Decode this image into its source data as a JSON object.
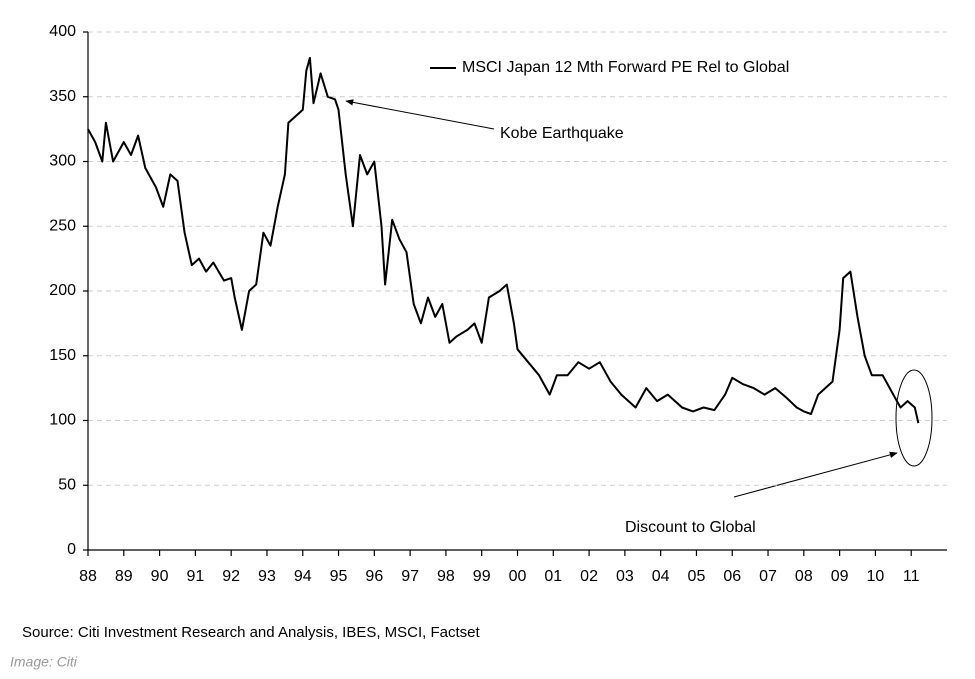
{
  "chart_data": {
    "type": "line",
    "legend_label": "MSCI Japan 12 Mth Forward PE Rel to Global",
    "annotations": [
      "Kobe Earthquake",
      "Discount to Global"
    ],
    "source": "Source: Citi Investment Research and Analysis, IBES, MSCI, Factset",
    "credit": "Image: Citi",
    "grid": true,
    "xlim": [
      1988,
      2012
    ],
    "ylim": [
      0,
      400
    ],
    "yticks": [
      0,
      50,
      100,
      150,
      200,
      250,
      300,
      350,
      400
    ],
    "xticks": [
      {
        "value": 1988,
        "label": "88"
      },
      {
        "value": 1989,
        "label": "89"
      },
      {
        "value": 1990,
        "label": "90"
      },
      {
        "value": 1991,
        "label": "91"
      },
      {
        "value": 1992,
        "label": "92"
      },
      {
        "value": 1993,
        "label": "93"
      },
      {
        "value": 1994,
        "label": "94"
      },
      {
        "value": 1995,
        "label": "95"
      },
      {
        "value": 1996,
        "label": "96"
      },
      {
        "value": 1997,
        "label": "97"
      },
      {
        "value": 1998,
        "label": "98"
      },
      {
        "value": 1999,
        "label": "99"
      },
      {
        "value": 2000,
        "label": "00"
      },
      {
        "value": 2001,
        "label": "01"
      },
      {
        "value": 2002,
        "label": "02"
      },
      {
        "value": 2003,
        "label": "03"
      },
      {
        "value": 2004,
        "label": "04"
      },
      {
        "value": 2005,
        "label": "05"
      },
      {
        "value": 2006,
        "label": "06"
      },
      {
        "value": 2007,
        "label": "07"
      },
      {
        "value": 2008,
        "label": "08"
      },
      {
        "value": 2009,
        "label": "09"
      },
      {
        "value": 2010,
        "label": "10"
      },
      {
        "value": 2011,
        "label": "11"
      }
    ],
    "x": [
      1988.0,
      1988.2,
      1988.4,
      1988.5,
      1988.7,
      1989.0,
      1989.2,
      1989.4,
      1989.6,
      1989.9,
      1990.1,
      1990.3,
      1990.5,
      1990.7,
      1990.9,
      1991.1,
      1991.3,
      1991.5,
      1991.8,
      1992.0,
      1992.1,
      1992.3,
      1992.5,
      1992.7,
      1992.9,
      1993.1,
      1993.3,
      1993.5,
      1993.6,
      1993.8,
      1994.0,
      1994.1,
      1994.2,
      1994.3,
      1994.5,
      1994.7,
      1994.9,
      1995.0,
      1995.2,
      1995.4,
      1995.6,
      1995.8,
      1996.0,
      1996.2,
      1996.3,
      1996.5,
      1996.7,
      1996.9,
      1997.1,
      1997.3,
      1997.5,
      1997.7,
      1997.9,
      1998.1,
      1998.3,
      1998.6,
      1998.8,
      1999.0,
      1999.2,
      1999.5,
      1999.7,
      1999.9,
      2000.0,
      2000.3,
      2000.6,
      2000.9,
      2001.1,
      2001.4,
      2001.7,
      2002.0,
      2002.3,
      2002.6,
      2002.9,
      2003.1,
      2003.3,
      2003.6,
      2003.9,
      2004.2,
      2004.6,
      2004.9,
      2005.2,
      2005.5,
      2005.8,
      2006.0,
      2006.3,
      2006.6,
      2006.9,
      2007.2,
      2007.5,
      2007.8,
      2008.0,
      2008.2,
      2008.4,
      2008.6,
      2008.8,
      2009.0,
      2009.1,
      2009.3,
      2009.5,
      2009.7,
      2009.9,
      2010.2,
      2010.5,
      2010.7,
      2010.9,
      2011.1,
      2011.2
    ],
    "series": [
      {
        "name": "MSCI Japan 12 Mth Forward PE Rel to Global",
        "color": "#000000",
        "values": [
          325,
          315,
          300,
          330,
          300,
          315,
          305,
          320,
          295,
          280,
          265,
          290,
          285,
          245,
          220,
          225,
          215,
          222,
          208,
          210,
          195,
          170,
          200,
          205,
          245,
          235,
          265,
          290,
          330,
          335,
          340,
          370,
          380,
          345,
          368,
          350,
          348,
          340,
          290,
          250,
          305,
          290,
          300,
          250,
          205,
          255,
          240,
          230,
          190,
          175,
          195,
          180,
          190,
          160,
          165,
          170,
          175,
          160,
          195,
          200,
          205,
          175,
          155,
          145,
          135,
          120,
          135,
          135,
          145,
          140,
          145,
          130,
          120,
          115,
          110,
          125,
          115,
          120,
          110,
          107,
          110,
          108,
          120,
          133,
          128,
          125,
          120,
          125,
          118,
          110,
          107,
          105,
          120,
          125,
          130,
          170,
          210,
          215,
          180,
          150,
          135,
          135,
          120,
          110,
          115,
          110,
          98
        ]
      }
    ]
  }
}
